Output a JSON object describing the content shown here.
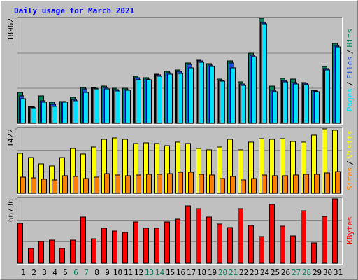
{
  "title": "Daily usage for March 2021",
  "legend_separator": "/",
  "weekend_color": "#00805c",
  "weekends": [
    "6",
    "7",
    "13",
    "14",
    "20",
    "21",
    "27",
    "28"
  ],
  "chart_data": [
    {
      "type": "bar",
      "ylim": [
        0,
        18962
      ],
      "yticks": [
        18962
      ],
      "series": [
        {
          "name": "Pages",
          "color": "#00e0ff",
          "values": [
            4424,
            2781,
            3792,
            3034,
            3792,
            4045,
            5562,
            6194,
            6194,
            5814,
            5941,
            7837,
            7837,
            8469,
            8848,
            8974,
            9986,
            10997,
            10238,
            7584,
            9986,
            6826,
            12008,
            17949,
            5688,
            7458,
            7078,
            6952,
            5688,
            9606,
            13778
          ]
        },
        {
          "name": "Files",
          "color": "#2050e0",
          "values": [
            4930,
            2907,
            4045,
            3413,
            3918,
            4298,
            6194,
            6320,
            6446,
            6067,
            6067,
            8216,
            7963,
            8722,
            9101,
            9354,
            10618,
            11250,
            10491,
            7710,
            10870,
            7078,
            12261,
            18202,
            5941,
            7710,
            7331,
            7205,
            5814,
            9859,
            14030
          ]
        },
        {
          "name": "Hits",
          "color": "#00805c",
          "values": [
            5562,
            3034,
            4930,
            3792,
            3918,
            4677,
            6446,
            6446,
            6699,
            6320,
            6320,
            8469,
            8216,
            8848,
            9354,
            9606,
            10870,
            11376,
            10744,
            7963,
            11250,
            7458,
            12640,
            18962,
            6699,
            8090,
            7963,
            7331,
            5941,
            10238,
            14410
          ]
        }
      ]
    },
    {
      "type": "bar",
      "ylim": [
        0,
        1422
      ],
      "yticks": [
        1422
      ],
      "series": [
        {
          "name": "Sites",
          "color": "#ff8000",
          "values": [
            356,
            340,
            309,
            294,
            387,
            371,
            325,
            356,
            433,
            402,
            387,
            402,
            417,
            417,
            433,
            464,
            464,
            417,
            402,
            325,
            371,
            294,
            325,
            402,
            387,
            387,
            402,
            417,
            417,
            448,
            479
          ]
        },
        {
          "name": "Visits",
          "color": "#ffff00",
          "values": [
            881,
            788,
            649,
            603,
            788,
            989,
            866,
            1020,
            1190,
            1221,
            1190,
            1098,
            1113,
            1098,
            1051,
            1129,
            1098,
            989,
            959,
            1020,
            1190,
            959,
            1129,
            1206,
            1190,
            1206,
            1144,
            1129,
            1283,
            1422,
            1391
          ]
        }
      ]
    },
    {
      "type": "bar",
      "ylim": [
        0,
        66736
      ],
      "yticks": [
        66736
      ],
      "categories": [
        "1",
        "2",
        "3",
        "4",
        "5",
        "6",
        "7",
        "8",
        "9",
        "10",
        "11",
        "12",
        "13",
        "14",
        "15",
        "16",
        "17",
        "18",
        "19",
        "20",
        "21",
        "22",
        "23",
        "24",
        "25",
        "26",
        "27",
        "28",
        "29",
        "30",
        "31"
      ],
      "series": [
        {
          "name": "KBytes",
          "color": "#ff0000",
          "values": [
            41348,
            15233,
            22487,
            23938,
            15233,
            23938,
            47876,
            25389,
            36270,
            33368,
            31918,
            42799,
            36270,
            36270,
            42799,
            45700,
            59483,
            56581,
            47876,
            40622,
            36995,
            56581,
            39172,
            27565,
            60934,
            38446,
            28291,
            54405,
            21037,
            48602,
            66736
          ]
        }
      ]
    }
  ]
}
